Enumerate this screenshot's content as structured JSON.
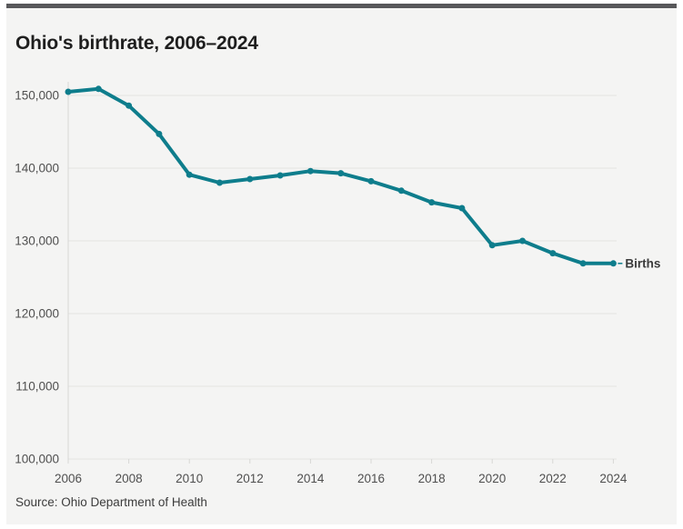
{
  "header": {
    "title": "Ohio's birthrate, 2006–2024"
  },
  "footer": {
    "source": "Source: Ohio Department of Health"
  },
  "colors": {
    "line": "#0e7d8c",
    "accent_bar": "#58585a",
    "card_background": "#f4f4f3",
    "gridline": "#e3e3e1",
    "axis_line": "#d7d7d5"
  },
  "chart_data": {
    "type": "line",
    "title": "Ohio's birthrate, 2006–2024",
    "series_label": "Births",
    "x": [
      2006,
      2007,
      2008,
      2009,
      2010,
      2011,
      2012,
      2013,
      2014,
      2015,
      2016,
      2017,
      2018,
      2019,
      2020,
      2021,
      2022,
      2023,
      2024
    ],
    "values": [
      150500,
      150900,
      148600,
      144700,
      139100,
      138000,
      138500,
      139000,
      139600,
      139300,
      138200,
      136900,
      135300,
      134500,
      129400,
      130000,
      128300,
      126900,
      126900
    ],
    "x_ticks": [
      2006,
      2008,
      2010,
      2012,
      2014,
      2016,
      2018,
      2020,
      2022,
      2024
    ],
    "x_tick_labels": [
      "2006",
      "2008",
      "2010",
      "2012",
      "2014",
      "2016",
      "2018",
      "2020",
      "2022",
      "2024"
    ],
    "y_ticks": [
      150000,
      140000,
      130000,
      120000,
      110000,
      100000
    ],
    "y_tick_labels": [
      "150,000",
      "140,000",
      "130,000",
      "120,000",
      "110,000",
      "100,000"
    ],
    "ylim": [
      100000,
      152000
    ],
    "xlim": [
      2006,
      2024
    ],
    "xlabel": "",
    "ylabel": "",
    "grid": true,
    "legend_position": "line-end"
  }
}
